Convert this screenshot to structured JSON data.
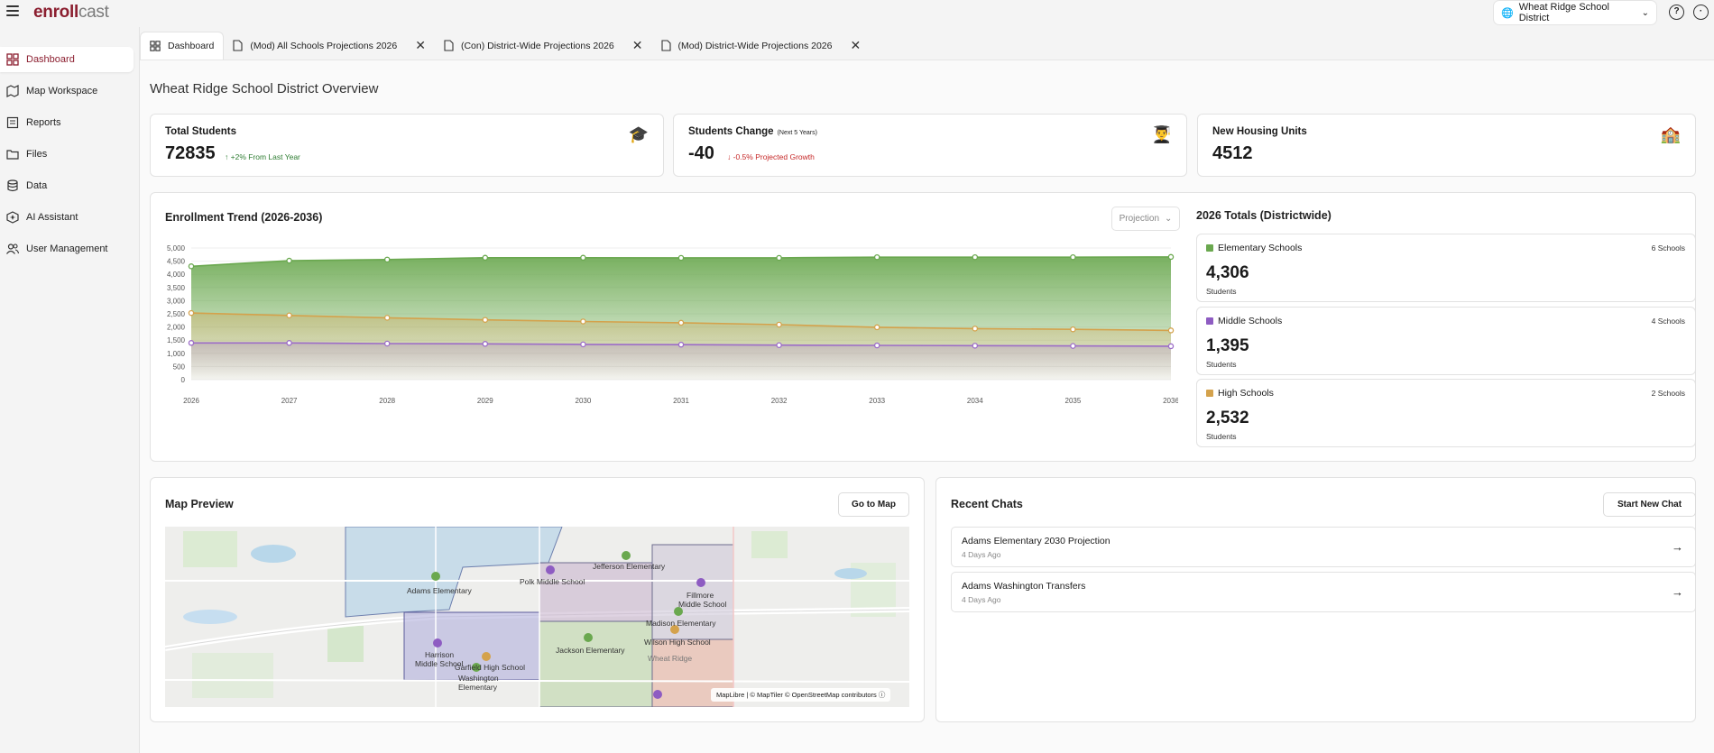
{
  "app": {
    "logo_part1": "enroll",
    "logo_part2": "cast",
    "district_selector": "Wheat Ridge School District"
  },
  "sidebar": {
    "items": [
      {
        "label": "Dashboard",
        "icon": "dashboard-icon"
      },
      {
        "label": "Map Workspace",
        "icon": "map-icon"
      },
      {
        "label": "Reports",
        "icon": "reports-icon"
      },
      {
        "label": "Files",
        "icon": "folder-icon"
      },
      {
        "label": "Data",
        "icon": "database-icon"
      },
      {
        "label": "AI Assistant",
        "icon": "ai-icon"
      },
      {
        "label": "User Management",
        "icon": "users-icon"
      }
    ]
  },
  "tabs": [
    {
      "label": "Dashboard"
    },
    {
      "label": "(Mod) All Schools Projections 2026"
    },
    {
      "label": "(Con) District-Wide Projections 2026"
    },
    {
      "label": "(Mod) District-Wide Projections 2026"
    }
  ],
  "page_title": "Wheat Ridge School District Overview",
  "stats": {
    "total_students": {
      "title": "Total Students",
      "value": "72835",
      "delta": "+2% From Last Year"
    },
    "students_change": {
      "title": "Students Change",
      "subtitle": "(Next 5 Years)",
      "value": "-40",
      "delta": "-0.5% Projected Growth"
    },
    "housing": {
      "title": "New Housing Units",
      "value": "4512"
    }
  },
  "trend": {
    "title": "Enrollment Trend (2026-2036)",
    "dropdown": "Projection"
  },
  "chart_data": {
    "type": "area",
    "x": [
      2026,
      2027,
      2028,
      2029,
      2030,
      2031,
      2032,
      2033,
      2034,
      2035,
      2036
    ],
    "ylim": [
      0,
      5000
    ],
    "yticks": [
      "5,000",
      "4,500",
      "4,000",
      "3,500",
      "3,000",
      "2,500",
      "2,000",
      "1,500",
      "1,000",
      "500",
      "0"
    ],
    "series": [
      {
        "values": [
          4306,
          4520,
          4560,
          4630,
          4630,
          4625,
          4625,
          4650,
          4650,
          4650,
          4660
        ],
        "color": "#6aa84f"
      },
      {
        "values": [
          2532,
          2440,
          2350,
          2270,
          2210,
          2160,
          2090,
          1990,
          1940,
          1910,
          1870
        ],
        "color": "#d4a24c"
      },
      {
        "values": [
          1395,
          1395,
          1370,
          1360,
          1340,
          1330,
          1310,
          1300,
          1290,
          1280,
          1270
        ],
        "color": "#9c6cc8"
      }
    ]
  },
  "totals": {
    "title": "2026 Totals (Districtwide)",
    "items": [
      {
        "name": "Elementary Schools",
        "count": "6 Schools",
        "value": "4,306",
        "unit": "Students",
        "color": "#6aa84f"
      },
      {
        "name": "Middle Schools",
        "count": "4 Schools",
        "value": "1,395",
        "unit": "Students",
        "color": "#8e5cc2"
      },
      {
        "name": "High Schools",
        "count": "2 Schools",
        "value": "2,532",
        "unit": "Students",
        "color": "#d4a24c"
      }
    ]
  },
  "map": {
    "title": "Map Preview",
    "button": "Go to Map",
    "attribution": "MapLibre | © MapTiler © OpenStreetMap contributors",
    "labels": {
      "adams": "Adams Elementary",
      "polk": "Polk Middle School",
      "jefferson": "Jefferson Elementary",
      "fillmore1": "Fillmore",
      "fillmore2": "Middle School",
      "madison": "Madison Elementary",
      "wilson": "Wilson High School",
      "jackson": "Jackson Elementary",
      "wheatridge": "Wheat Ridge",
      "harrison1": "Harrison",
      "harrison2": "Middle School",
      "garfield": "Garfield High School",
      "washington1": "Washington",
      "washington2": "Elementary"
    }
  },
  "chats": {
    "title": "Recent Chats",
    "button": "Start New Chat",
    "items": [
      {
        "title": "Adams Elementary 2030 Projection",
        "date": "4 Days Ago"
      },
      {
        "title": "Adams Washington Transfers",
        "date": "4 Days Ago"
      }
    ]
  }
}
